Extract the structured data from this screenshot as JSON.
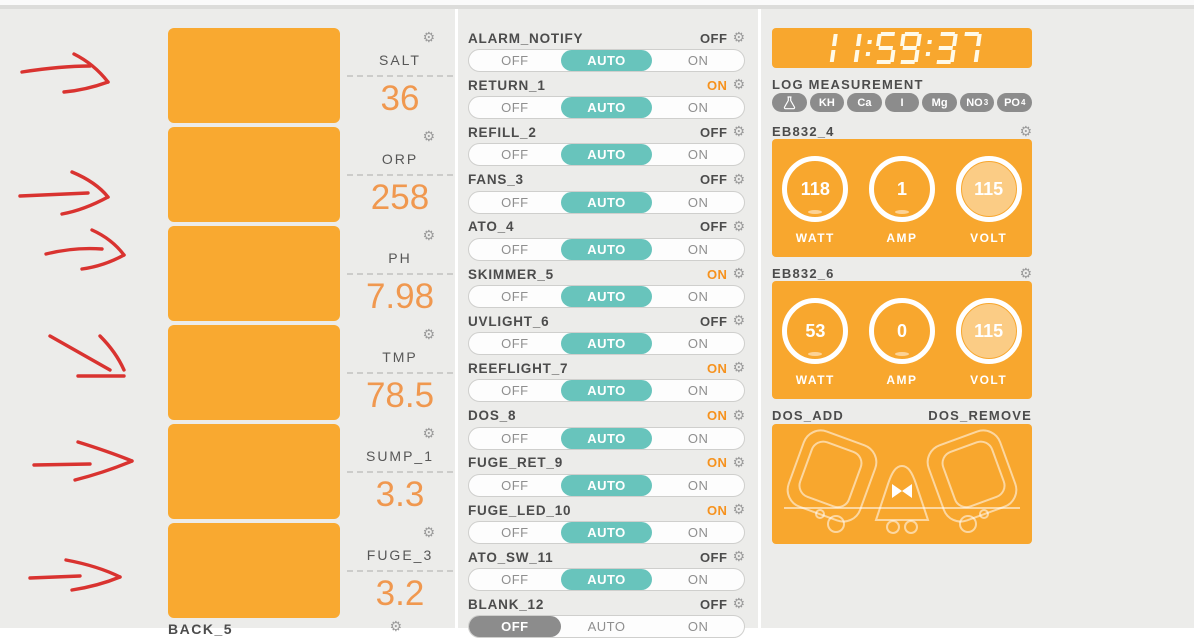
{
  "colors": {
    "background": "#ECECEA",
    "card_orange": "#F8A72E",
    "tile_orange": "#F9A930",
    "teal_selected": "#68C4BC",
    "gray_selected": "#8C8C8C",
    "status_on_orange": "#F6921E",
    "probe_value_orange": "#F0984F",
    "arrow_red": "#D93330",
    "label_gray": "#4C4C4C"
  },
  "icons": {
    "gear": "⚙",
    "flask": "flask-icon"
  },
  "annotations": {
    "arrow_count": 6
  },
  "probes": [
    {
      "name": "SALT",
      "value": "36"
    },
    {
      "name": "ORP",
      "value": "258"
    },
    {
      "name": "PH",
      "value": "7.98"
    },
    {
      "name": "TMP",
      "value": "78.5"
    },
    {
      "name": "SUMP_1",
      "value": "3.3"
    },
    {
      "name": "FUGE_3",
      "value": "3.2"
    },
    {
      "name": "BACK_5",
      "value": ""
    }
  ],
  "toggle_options": [
    "OFF",
    "AUTO",
    "ON"
  ],
  "outlets": [
    {
      "name": "ALARM_NOTIFY",
      "status": "OFF",
      "mode": "AUTO"
    },
    {
      "name": "RETURN_1",
      "status": "ON",
      "mode": "AUTO"
    },
    {
      "name": "REFILL_2",
      "status": "OFF",
      "mode": "AUTO"
    },
    {
      "name": "FANS_3",
      "status": "OFF",
      "mode": "AUTO"
    },
    {
      "name": "ATO_4",
      "status": "OFF",
      "mode": "AUTO"
    },
    {
      "name": "SKIMMER_5",
      "status": "ON",
      "mode": "AUTO"
    },
    {
      "name": "UVLIGHT_6",
      "status": "OFF",
      "mode": "AUTO"
    },
    {
      "name": "REEFLIGHT_7",
      "status": "ON",
      "mode": "AUTO"
    },
    {
      "name": "DOS_8",
      "status": "ON",
      "mode": "AUTO"
    },
    {
      "name": "FUGE_RET_9",
      "status": "ON",
      "mode": "AUTO"
    },
    {
      "name": "FUGE_LED_10",
      "status": "ON",
      "mode": "AUTO"
    },
    {
      "name": "ATO_SW_11",
      "status": "OFF",
      "mode": "AUTO"
    },
    {
      "name": "BLANK_12",
      "status": "OFF",
      "mode": "OFF"
    }
  ],
  "clock": {
    "time": "11:59:37"
  },
  "log_measurement": {
    "title": "LOG MEASUREMENT",
    "pills": [
      {
        "icon": "flask-icon"
      },
      {
        "text": "KH"
      },
      {
        "text": "Ca"
      },
      {
        "text": "I"
      },
      {
        "text": "Mg"
      },
      {
        "text": "NO",
        "sub": "3"
      },
      {
        "text": "PO",
        "sub": "4"
      }
    ]
  },
  "eb_modules": [
    {
      "name": "EB832_4",
      "gauges": [
        {
          "value": "118",
          "label": "WATT",
          "fill": "low"
        },
        {
          "value": "1",
          "label": "AMP",
          "fill": "low"
        },
        {
          "value": "115",
          "label": "VOLT",
          "fill": "full"
        }
      ]
    },
    {
      "name": "EB832_6",
      "gauges": [
        {
          "value": "53",
          "label": "WATT",
          "fill": "low"
        },
        {
          "value": "0",
          "label": "AMP",
          "fill": "low"
        },
        {
          "value": "115",
          "label": "VOLT",
          "fill": "full"
        }
      ]
    }
  ],
  "dos": {
    "left_label": "DOS_ADD",
    "right_label": "DOS_REMOVE"
  }
}
